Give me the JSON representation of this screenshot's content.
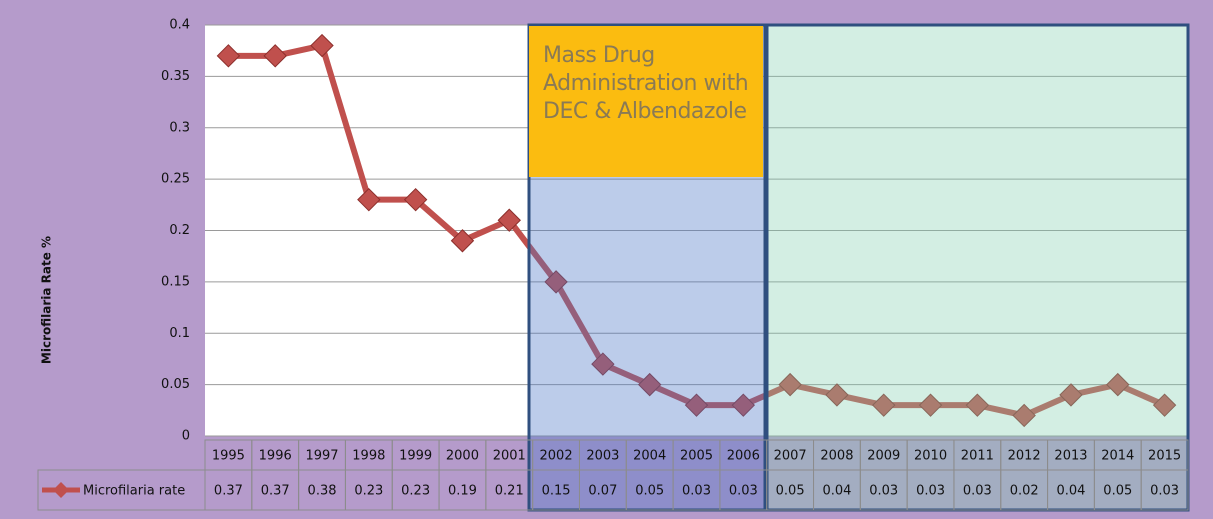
{
  "chart_data": {
    "type": "line",
    "y_label": "Microfilaria  Rate %",
    "annotation": "Mass Drug Administration with DEC & Albendazole",
    "categories": [
      "1995",
      "1996",
      "1997",
      "1998",
      "1999",
      "2000",
      "2001",
      "2002",
      "2003",
      "2004",
      "2005",
      "2006",
      "2007",
      "2008",
      "2009",
      "2010",
      "2011",
      "2012",
      "2013",
      "2014",
      "2015"
    ],
    "series": [
      {
        "name": "Microfilaria rate",
        "color": "#c0504d",
        "values": [
          0.37,
          0.37,
          0.38,
          0.23,
          0.23,
          0.19,
          0.21,
          0.15,
          0.07,
          0.05,
          0.03,
          0.03,
          0.05,
          0.04,
          0.03,
          0.03,
          0.03,
          0.02,
          0.04,
          0.05,
          0.03
        ]
      }
    ],
    "ylim": [
      0,
      0.4
    ],
    "yticks": [
      0,
      0.05,
      0.1,
      0.15,
      0.2,
      0.25,
      0.3,
      0.35,
      0.4
    ],
    "grid": true
  }
}
